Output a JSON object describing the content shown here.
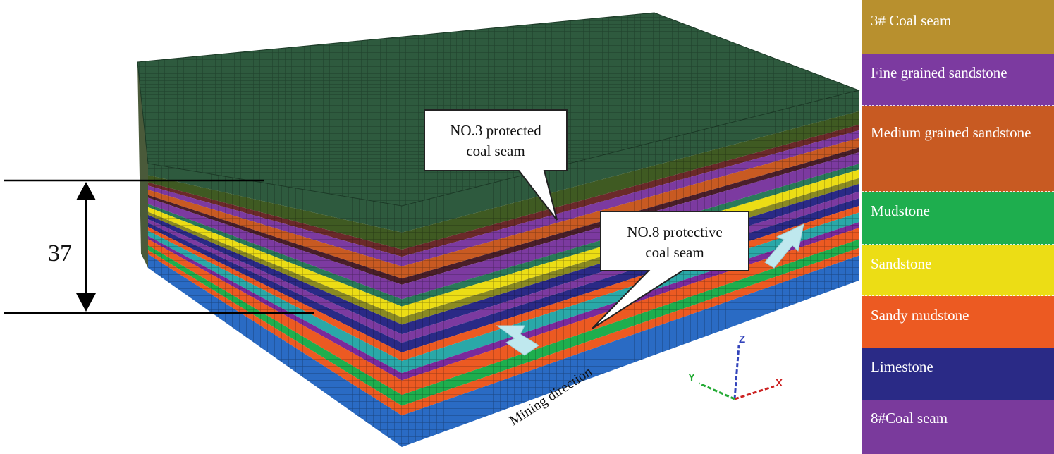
{
  "legend": {
    "items": [
      {
        "label": "3# Coal seam",
        "color": "#b8902e"
      },
      {
        "label": "Fine grained sandstone",
        "color": "#7c3aa0"
      },
      {
        "label": "Medium grained sandstone",
        "color": "#c85a22"
      },
      {
        "label": "Mudstone",
        "color": "#1eae4e"
      },
      {
        "label": "Sandstone",
        "color": "#ecdd15"
      },
      {
        "label": "Sandy mudstone",
        "color": "#ec5a22"
      },
      {
        "label": "Limestone",
        "color": "#2a2a86"
      },
      {
        "label": "8#Coal seam",
        "color": "#7a3a9c"
      }
    ]
  },
  "model": {
    "top_color": "#2e5a3e",
    "base_color": "#2a6bc4"
  },
  "callouts": {
    "protected": {
      "line1": "NO.3 protected",
      "line2": "coal seam"
    },
    "protective": {
      "line1": "NO.8 protective",
      "line2": "coal seam"
    }
  },
  "dimension": {
    "value": "37"
  },
  "mining_direction": "Mining direction",
  "axes": {
    "x": "X",
    "y": "Y",
    "z": "Z"
  }
}
